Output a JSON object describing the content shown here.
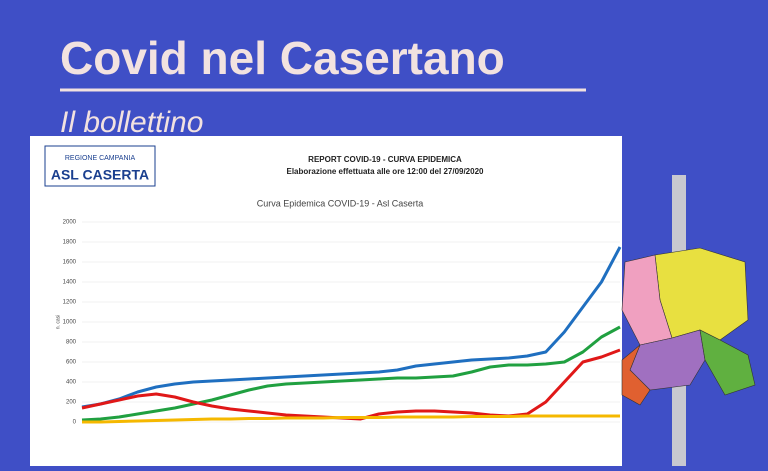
{
  "header": {
    "title": "Covid nel Casertano",
    "subtitle": "Il bollettino"
  },
  "report": {
    "logo_top": "REGIONE CAMPANIA",
    "logo_main": "ASL CASERTA",
    "heading": "REPORT COVID-19 - CURVA EPIDEMICA",
    "subheading": "Elaborazione effettuata alle ore 12:00 del 27/09/2020"
  },
  "chart_data": {
    "type": "line",
    "title": "Curva Epidemica COVID-19 - Asl Caserta",
    "ylabel": "n. casi",
    "categories": [
      null,
      null,
      null,
      null,
      null,
      null,
      null,
      null,
      null,
      null,
      null,
      null,
      null,
      null,
      null,
      null,
      null,
      null,
      null,
      null,
      null,
      null,
      null,
      null,
      null,
      null,
      null,
      null,
      null,
      null
    ],
    "ylim": [
      0,
      2000
    ],
    "yticks": [
      0,
      200,
      400,
      600,
      800,
      1000,
      1200,
      1400,
      1600,
      1800,
      2000
    ],
    "grid": true,
    "series": [
      {
        "color": "#1f6fc0",
        "values": [
          150,
          180,
          230,
          300,
          350,
          380,
          400,
          410,
          420,
          430,
          440,
          450,
          460,
          470,
          480,
          490,
          500,
          520,
          560,
          580,
          600,
          620,
          630,
          640,
          660,
          700,
          900,
          1150,
          1400,
          1750
        ]
      },
      {
        "color": "#20a040",
        "values": [
          20,
          30,
          50,
          80,
          110,
          140,
          180,
          220,
          270,
          320,
          360,
          380,
          390,
          400,
          410,
          420,
          430,
          440,
          440,
          450,
          460,
          500,
          550,
          570,
          570,
          580,
          600,
          700,
          850,
          950
        ]
      },
      {
        "color": "#e01818",
        "values": [
          140,
          180,
          220,
          260,
          280,
          250,
          200,
          160,
          130,
          110,
          90,
          70,
          60,
          50,
          40,
          30,
          80,
          100,
          110,
          110,
          100,
          90,
          70,
          60,
          80,
          200,
          400,
          600,
          650,
          720
        ]
      },
      {
        "color": "#f5b800",
        "values": [
          0,
          0,
          5,
          10,
          15,
          20,
          25,
          30,
          30,
          35,
          35,
          40,
          40,
          40,
          45,
          45,
          45,
          50,
          50,
          50,
          50,
          55,
          55,
          55,
          60,
          60,
          60,
          60,
          60,
          60
        ]
      }
    ]
  }
}
